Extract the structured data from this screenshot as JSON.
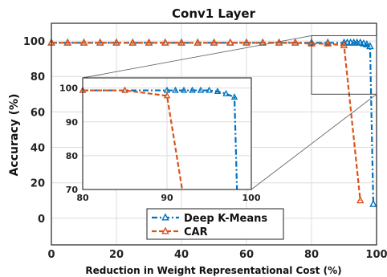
{
  "chart_data": {
    "type": "line",
    "title": "Conv1 Layer",
    "xlabel": "Reduction in Weight Representational Cost (%)",
    "ylabel": "Accuracy (%)",
    "xlim": [
      0,
      100
    ],
    "ylim": [
      -15,
      110
    ],
    "xticks": [
      0,
      20,
      40,
      60,
      80,
      100
    ],
    "yticks": [
      0,
      20,
      40,
      60,
      80,
      100
    ],
    "grid": true,
    "legend_position": "bottom-center",
    "series": [
      {
        "name": "Deep K-Means",
        "color": "#0072BD",
        "linestyle": "dash-dot",
        "marker": "triangle",
        "x": [
          0,
          5,
          10,
          15,
          20,
          25,
          30,
          35,
          40,
          45,
          50,
          55,
          60,
          65,
          70,
          75,
          80,
          85,
          90,
          91,
          92,
          93,
          94,
          95,
          96,
          97,
          98,
          99
        ],
        "y": [
          99,
          99,
          99,
          99,
          99,
          99,
          99,
          99,
          99,
          99,
          99,
          99,
          99,
          99,
          99,
          99,
          99,
          99,
          99,
          99,
          99,
          99,
          99,
          99,
          98.5,
          98,
          97,
          8
        ]
      },
      {
        "name": "CAR",
        "color": "#D95319",
        "linestyle": "dashed",
        "marker": "triangle",
        "x": [
          0,
          5,
          10,
          15,
          20,
          25,
          30,
          35,
          40,
          45,
          50,
          55,
          60,
          65,
          70,
          75,
          80,
          85,
          90,
          95
        ],
        "y": [
          99,
          99,
          99,
          99,
          99,
          99,
          99,
          99,
          99,
          99,
          99,
          99,
          99,
          99,
          99,
          99,
          98.5,
          98.5,
          97.5,
          10
        ]
      }
    ],
    "inset": {
      "xlim": [
        80,
        100
      ],
      "ylim": [
        70,
        103
      ],
      "xticks": [
        80,
        90,
        100
      ],
      "yticks": [
        70,
        80,
        90,
        100
      ],
      "deep_kmeans": {
        "x": [
          80,
          85,
          90,
          91,
          92,
          93,
          94,
          95,
          96,
          97,
          98,
          98.3
        ],
        "y": [
          99.3,
          99.3,
          99.3,
          99.3,
          99.3,
          99.3,
          99.3,
          99.3,
          99,
          98.3,
          97.3,
          70
        ]
      },
      "car": {
        "x": [
          80,
          85,
          90,
          91.8
        ],
        "y": [
          99.3,
          99.3,
          97.7,
          70
        ]
      }
    }
  }
}
